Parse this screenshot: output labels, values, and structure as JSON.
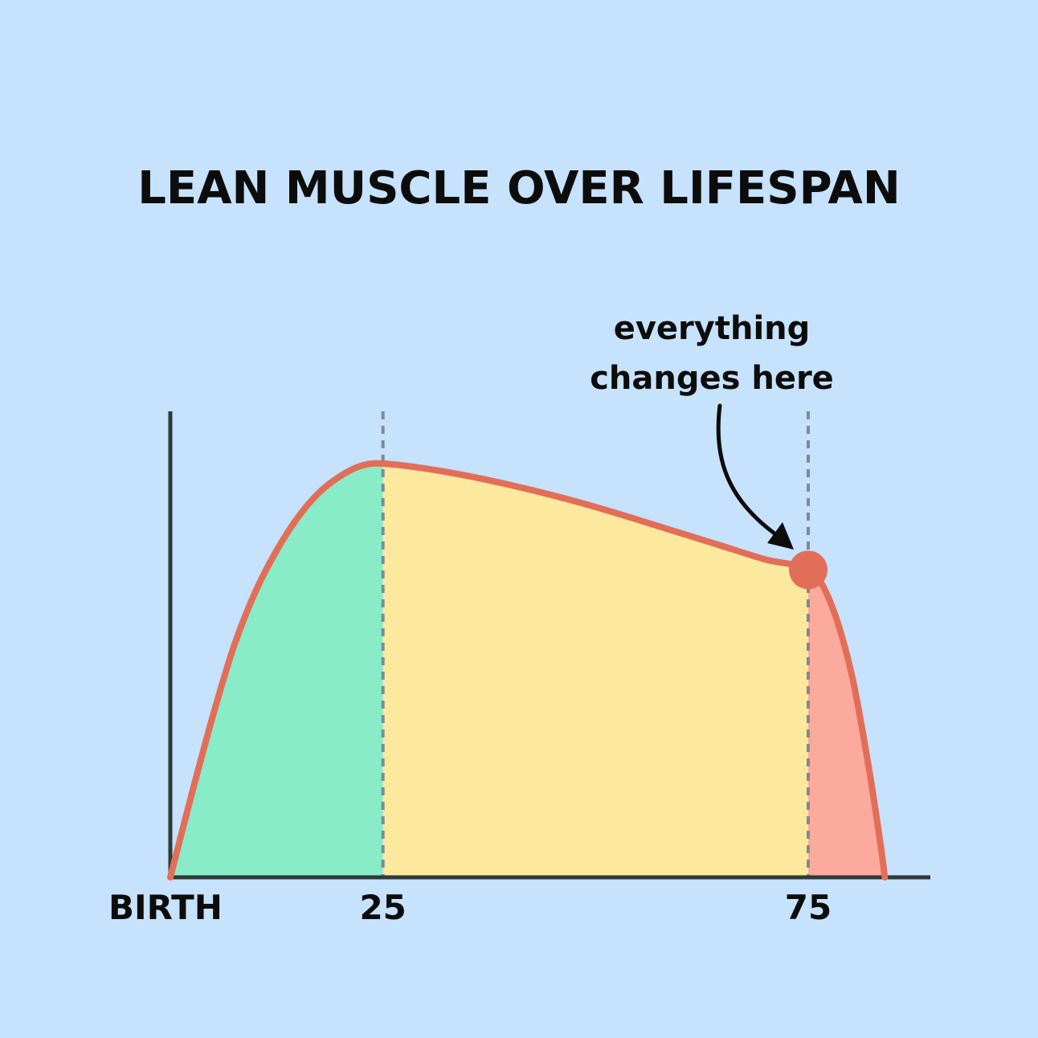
{
  "chart_data": {
    "type": "area",
    "title": "LEAN MUSCLE OVER LIFESPAN",
    "xlabel": "",
    "ylabel": "",
    "x_ticks": [
      {
        "x": 0,
        "label": "BIRTH"
      },
      {
        "x": 25,
        "label": "25"
      },
      {
        "x": 75,
        "label": "75"
      }
    ],
    "xlim": [
      0,
      93
    ],
    "ylim": [
      0,
      100
    ],
    "grid": false,
    "curve": [
      {
        "x": 0,
        "y": 0
      },
      {
        "x": 2.5,
        "y": 20
      },
      {
        "x": 5,
        "y": 39
      },
      {
        "x": 7.5,
        "y": 56
      },
      {
        "x": 10,
        "y": 69
      },
      {
        "x": 12.5,
        "y": 79
      },
      {
        "x": 15,
        "y": 87
      },
      {
        "x": 17.5,
        "y": 93
      },
      {
        "x": 20,
        "y": 97
      },
      {
        "x": 22.5,
        "y": 99.5
      },
      {
        "x": 25,
        "y": 100
      },
      {
        "x": 30,
        "y": 98.8
      },
      {
        "x": 35,
        "y": 97
      },
      {
        "x": 40,
        "y": 94.8
      },
      {
        "x": 45,
        "y": 92.3
      },
      {
        "x": 50,
        "y": 89.5
      },
      {
        "x": 55,
        "y": 86.4
      },
      {
        "x": 60,
        "y": 83.2
      },
      {
        "x": 65,
        "y": 80
      },
      {
        "x": 70,
        "y": 76.8
      },
      {
        "x": 75,
        "y": 74.3
      },
      {
        "x": 77.5,
        "y": 67
      },
      {
        "x": 80,
        "y": 50
      },
      {
        "x": 82,
        "y": 28
      },
      {
        "x": 83.5,
        "y": 8
      },
      {
        "x": 84,
        "y": 0
      }
    ],
    "regions": [
      {
        "from": 0,
        "to": 25,
        "color": "#88ecc8"
      },
      {
        "from": 25,
        "to": 75,
        "color": "#fde99e"
      },
      {
        "from": 75,
        "to": 84,
        "color": "#fcaa9e"
      }
    ],
    "dividers": [
      25,
      75
    ],
    "highlight_point": {
      "x": 75,
      "y": 74.3
    },
    "annotation": {
      "lines": [
        "everything",
        "changes here"
      ],
      "target_x": 75
    },
    "colors": {
      "background": "#c6e2fc",
      "line": "#e36e58",
      "axis": "#2e3a3a",
      "divider": "#7d8a96",
      "text": "#0c0c0c"
    }
  }
}
